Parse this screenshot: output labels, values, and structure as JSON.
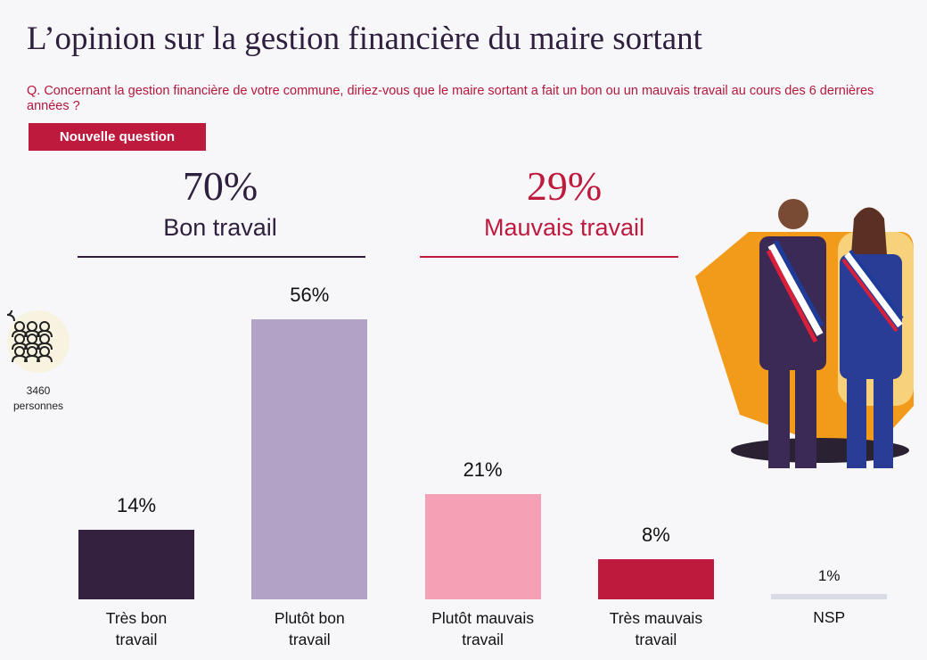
{
  "title": "L’opinion sur la gestion financière du maire sortant",
  "question": "Q. Concernant la gestion financière de votre commune, diriez-vous que le maire sortant a fait un bon ou un mauvais travail au cours des 6 dernières années ?",
  "badge": "Nouvelle question",
  "sample": {
    "count": "3460",
    "unit": "personnes",
    "icon": "people-group-icon"
  },
  "groups": [
    {
      "pct": "70%",
      "label": "Bon travail",
      "color": "#2e1f3e"
    },
    {
      "pct": "29%",
      "label": "Mauvais travail",
      "color": "#be1a3e"
    }
  ],
  "chart_data": {
    "type": "bar",
    "categories": [
      "Très bon travail",
      "Plutôt bon travail",
      "Plutôt mauvais travail",
      "Très mauvais travail",
      "NSP"
    ],
    "category_lines": [
      [
        "Très bon",
        "travail"
      ],
      [
        "Plutôt bon",
        "travail"
      ],
      [
        "Plutôt mauvais",
        "travail"
      ],
      [
        "Très mauvais",
        "travail"
      ],
      [
        "NSP",
        ""
      ]
    ],
    "values": [
      14,
      56,
      21,
      8,
      1
    ],
    "labels": [
      "14%",
      "56%",
      "21%",
      "8%",
      "1%"
    ],
    "colors": [
      "#33213f",
      "#b0a3c6",
      "#f5a0b4",
      "#be1a3e",
      "#d8dbe6"
    ],
    "ylim": [
      0,
      56
    ]
  }
}
